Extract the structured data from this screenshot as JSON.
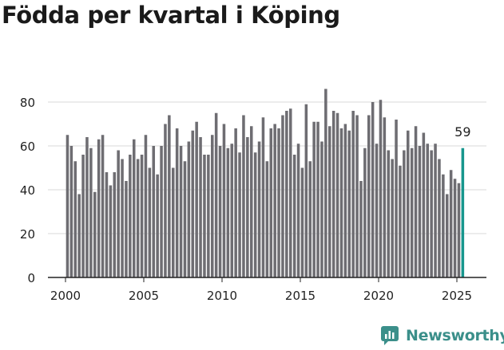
{
  "header": {
    "title": "Födda per kvartal i Köping"
  },
  "brand": {
    "name": "Newsworthy",
    "color": "#3b8f8a"
  },
  "colors": {
    "bar": "#6e6d72",
    "highlight": "#17968d",
    "grid": "#d9d9d9",
    "axis": "#222222",
    "text": "#222222"
  },
  "chart_data": {
    "type": "bar",
    "title": "Födda per kvartal i Köping",
    "xlabel": "",
    "ylabel": "",
    "ylim": [
      0,
      88
    ],
    "yticks": [
      0,
      20,
      40,
      60,
      80
    ],
    "xticks": [
      2000,
      2005,
      2010,
      2015,
      2020,
      2025
    ],
    "x_start": 2000.0,
    "x_end": 2026.0,
    "x_step": 0.25,
    "grid": true,
    "highlight_last": true,
    "annotation": {
      "label": "59"
    },
    "values": [
      65,
      60,
      53,
      38,
      56,
      64,
      59,
      39,
      63,
      65,
      48,
      42,
      48,
      58,
      54,
      44,
      56,
      63,
      54,
      56,
      65,
      50,
      60,
      47,
      60,
      70,
      74,
      50,
      68,
      60,
      53,
      62,
      67,
      71,
      64,
      56,
      56,
      65,
      75,
      60,
      70,
      59,
      61,
      68,
      57,
      74,
      64,
      69,
      57,
      62,
      73,
      53,
      68,
      70,
      68,
      74,
      76,
      77,
      56,
      61,
      50,
      79,
      53,
      71,
      71,
      62,
      86,
      69,
      76,
      75,
      68,
      70,
      67,
      76,
      74,
      44,
      59,
      74,
      80,
      61,
      81,
      73,
      58,
      54,
      72,
      51,
      58,
      67,
      59,
      69,
      60,
      66,
      61,
      58,
      61,
      54,
      47,
      38,
      49,
      45,
      43,
      59
    ]
  }
}
